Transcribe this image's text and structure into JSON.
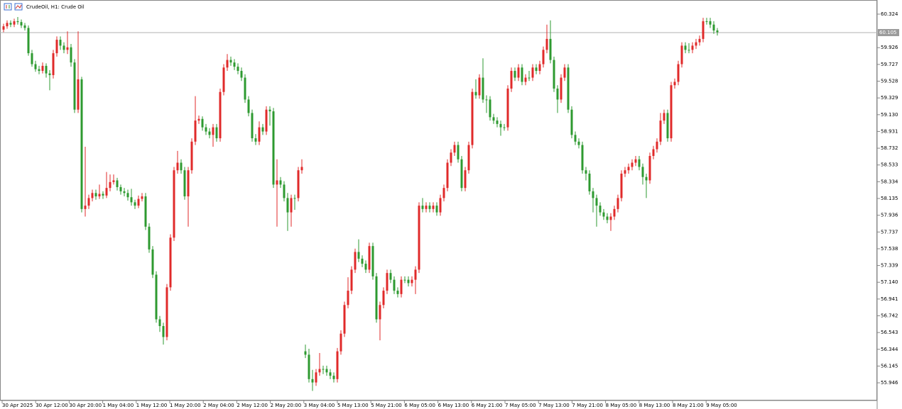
{
  "chart_data": {
    "type": "candlestick",
    "title": "CrudeOil, H1:  Crude Oil",
    "up_color": "#e02a2a",
    "down_color": "#2e9a30",
    "ylim": [
      55.736,
      60.492
    ],
    "yticks": [
      60.324,
      59.926,
      59.727,
      59.528,
      59.329,
      {
        "value": 59.13,
        "label": "59.130"
      },
      58.931,
      58.732,
      58.533,
      58.334,
      58.135,
      57.936,
      57.737,
      57.538,
      57.339,
      {
        "value": 57.14,
        "label": "57.140"
      },
      56.941,
      56.742,
      56.543,
      56.344,
      56.145,
      55.946
    ],
    "current_price": 60.105,
    "time_labels": [
      "30 Apr 2025",
      "30 Apr 12:00",
      "30 Apr 20:00",
      "1 May 04:00",
      "1 May 12:00",
      "1 May 20:00",
      "2 May 04:00",
      "2 May 12:00",
      "2 May 20:00",
      "3 May 04:00",
      "5 May 13:00",
      "5 May 21:00",
      "6 May 05:00",
      "6 May 13:00",
      "6 May 21:00",
      "7 May 05:00",
      "7 May 13:00",
      "7 May 21:00",
      "8 May 05:00",
      "8 May 13:00",
      "8 May 21:00",
      "9 May 05:00"
    ],
    "candles": [
      [
        60.14,
        60.21,
        60.11,
        60.18
      ],
      [
        60.18,
        60.25,
        60.15,
        60.22
      ],
      [
        60.22,
        60.25,
        60.17,
        60.2
      ],
      [
        60.2,
        60.27,
        60.17,
        60.24
      ],
      [
        60.24,
        60.29,
        60.2,
        60.23
      ],
      [
        60.23,
        60.26,
        60.16,
        60.19
      ],
      [
        60.19,
        60.22,
        60.13,
        60.16
      ],
      [
        60.16,
        60.19,
        59.83,
        59.86
      ],
      [
        59.86,
        59.9,
        59.7,
        59.73
      ],
      [
        59.73,
        59.77,
        59.64,
        59.67
      ],
      [
        59.67,
        59.71,
        59.61,
        59.65
      ],
      [
        59.65,
        59.75,
        59.62,
        59.71
      ],
      [
        59.71,
        59.74,
        59.57,
        59.62
      ],
      [
        59.62,
        59.66,
        59.42,
        59.6
      ],
      [
        59.6,
        59.9,
        59.56,
        59.86
      ],
      [
        59.86,
        60.06,
        59.82,
        60.02
      ],
      [
        60.02,
        60.06,
        59.9,
        59.95
      ],
      [
        59.95,
        59.99,
        59.86,
        59.9
      ],
      [
        59.9,
        60.12,
        59.85,
        59.93
      ],
      [
        59.93,
        59.97,
        59.7,
        59.75
      ],
      [
        59.75,
        59.79,
        59.15,
        59.19
      ],
      [
        59.19,
        60.12,
        59.15,
        59.55
      ],
      [
        59.55,
        59.58,
        57.97,
        58.01
      ],
      [
        58.01,
        58.75,
        57.92,
        58.05
      ],
      [
        58.05,
        58.18,
        58.01,
        58.14
      ],
      [
        58.14,
        58.24,
        58.1,
        58.2
      ],
      [
        58.2,
        58.24,
        58.12,
        58.16
      ],
      [
        58.16,
        58.3,
        58.13,
        58.19
      ],
      [
        58.19,
        58.22,
        58.13,
        58.17
      ],
      [
        58.17,
        58.45,
        58.14,
        58.26
      ],
      [
        58.26,
        58.42,
        58.22,
        58.33
      ],
      [
        58.33,
        58.42,
        58.3,
        58.35
      ],
      [
        58.35,
        58.38,
        58.23,
        58.27
      ],
      [
        58.27,
        58.3,
        58.18,
        58.22
      ],
      [
        58.22,
        58.26,
        58.16,
        58.2
      ],
      [
        58.2,
        58.24,
        58.11,
        58.15
      ],
      [
        58.15,
        58.25,
        58.05,
        58.09
      ],
      [
        58.09,
        58.12,
        58.01,
        58.05
      ],
      [
        58.05,
        58.17,
        58.02,
        58.13
      ],
      [
        58.13,
        58.2,
        58.1,
        58.16
      ],
      [
        58.16,
        58.2,
        57.76,
        57.8
      ],
      [
        57.8,
        57.84,
        57.49,
        57.53
      ],
      [
        57.53,
        57.57,
        57.19,
        57.23
      ],
      [
        57.23,
        57.27,
        56.66,
        56.7
      ],
      [
        56.7,
        56.74,
        56.55,
        56.62
      ],
      [
        56.62,
        56.66,
        56.4,
        56.49
      ],
      [
        56.49,
        57.12,
        56.45,
        57.08
      ],
      [
        57.08,
        57.71,
        57.04,
        57.67
      ],
      [
        57.67,
        58.51,
        57.63,
        58.47
      ],
      [
        58.47,
        58.7,
        58.43,
        58.56
      ],
      [
        58.56,
        58.6,
        58.43,
        58.47
      ],
      [
        58.47,
        58.51,
        58.12,
        58.16
      ],
      [
        58.16,
        58.51,
        57.8,
        58.47
      ],
      [
        58.47,
        58.85,
        58.43,
        58.81
      ],
      [
        58.81,
        59.35,
        58.77,
        59.06
      ],
      [
        59.06,
        59.12,
        59.02,
        59.08
      ],
      [
        59.08,
        59.11,
        58.94,
        58.98
      ],
      [
        58.98,
        59.02,
        58.89,
        58.93
      ],
      [
        58.93,
        58.97,
        58.85,
        58.89
      ],
      [
        58.89,
        59.02,
        58.75,
        58.98
      ],
      [
        58.98,
        59.02,
        58.81,
        58.85
      ],
      [
        58.85,
        59.44,
        58.81,
        59.4
      ],
      [
        59.4,
        59.73,
        59.36,
        59.69
      ],
      [
        59.69,
        59.85,
        59.65,
        59.78
      ],
      [
        59.78,
        59.82,
        59.71,
        59.75
      ],
      [
        59.75,
        59.79,
        59.66,
        59.7
      ],
      [
        59.7,
        59.74,
        59.61,
        59.65
      ],
      [
        59.65,
        59.69,
        59.53,
        59.57
      ],
      [
        59.57,
        59.61,
        59.27,
        59.31
      ],
      [
        59.31,
        59.35,
        59.11,
        59.15
      ],
      [
        59.15,
        59.19,
        58.81,
        58.85
      ],
      [
        58.85,
        58.9,
        58.77,
        58.81
      ],
      [
        58.81,
        59.05,
        58.77,
        58.98
      ],
      [
        58.98,
        59.02,
        58.89,
        58.93
      ],
      [
        58.93,
        59.23,
        58.89,
        59.19
      ],
      [
        59.19,
        59.23,
        59.0,
        59.17
      ],
      [
        59.17,
        59.21,
        58.26,
        58.3
      ],
      [
        58.3,
        58.6,
        57.8,
        58.35
      ],
      [
        58.35,
        58.39,
        58.26,
        58.3
      ],
      [
        58.3,
        58.34,
        58.1,
        58.14
      ],
      [
        58.14,
        58.2,
        57.75,
        57.97
      ],
      [
        57.97,
        58.18,
        57.8,
        58.14
      ],
      [
        58.14,
        58.18,
        58.0,
        58.14
      ],
      [
        58.14,
        58.51,
        58.1,
        58.47
      ],
      [
        58.47,
        58.6,
        58.43,
        58.51
      ],
      [
        56.32,
        56.4,
        56.24,
        56.28
      ],
      [
        56.28,
        56.35,
        55.95,
        55.99
      ],
      [
        55.99,
        56.1,
        55.85,
        55.95
      ],
      [
        55.95,
        56.11,
        55.91,
        56.07
      ],
      [
        56.07,
        56.3,
        56.03,
        56.11
      ],
      [
        56.11,
        56.15,
        56.05,
        56.11
      ],
      [
        56.11,
        56.15,
        56.03,
        56.07
      ],
      [
        56.07,
        56.11,
        55.99,
        56.03
      ],
      [
        56.03,
        56.07,
        55.95,
        55.99
      ],
      [
        55.99,
        56.36,
        55.95,
        56.32
      ],
      [
        56.32,
        56.57,
        56.28,
        56.53
      ],
      [
        56.53,
        56.91,
        56.49,
        56.87
      ],
      [
        56.87,
        57.2,
        56.83,
        57.04
      ],
      [
        57.04,
        57.33,
        57.0,
        57.29
      ],
      [
        57.29,
        57.54,
        57.25,
        57.5
      ],
      [
        57.5,
        57.65,
        57.38,
        57.42
      ],
      [
        57.42,
        57.46,
        57.32,
        57.36
      ],
      [
        57.36,
        57.4,
        57.25,
        57.29
      ],
      [
        57.29,
        57.61,
        57.25,
        57.57
      ],
      [
        57.57,
        57.61,
        57.17,
        57.21
      ],
      [
        57.21,
        57.25,
        56.66,
        56.7
      ],
      [
        56.7,
        56.91,
        56.45,
        56.87
      ],
      [
        56.87,
        57.08,
        56.83,
        57.04
      ],
      [
        57.04,
        57.29,
        57.0,
        57.25
      ],
      [
        57.25,
        57.29,
        57.13,
        57.17
      ],
      [
        57.17,
        57.21,
        57.0,
        57.04
      ],
      [
        57.04,
        57.08,
        56.96,
        57.0
      ],
      [
        57.0,
        57.21,
        56.96,
        57.17
      ],
      [
        57.17,
        57.21,
        57.13,
        57.17
      ],
      [
        57.17,
        57.21,
        57.09,
        57.13
      ],
      [
        57.13,
        57.21,
        57.09,
        57.17
      ],
      [
        57.17,
        57.33,
        57.0,
        57.29
      ],
      [
        57.29,
        58.09,
        57.25,
        58.05
      ],
      [
        58.05,
        58.14,
        57.97,
        58.01
      ],
      [
        58.01,
        58.09,
        57.97,
        58.05
      ],
      [
        58.05,
        58.09,
        57.97,
        58.01
      ],
      [
        58.01,
        58.09,
        57.97,
        58.05
      ],
      [
        58.05,
        58.09,
        57.93,
        57.97
      ],
      [
        57.97,
        58.18,
        57.93,
        58.14
      ],
      [
        58.14,
        58.3,
        58.1,
        58.26
      ],
      [
        58.26,
        58.6,
        58.22,
        58.56
      ],
      [
        58.56,
        58.72,
        58.52,
        58.68
      ],
      [
        58.68,
        58.81,
        58.64,
        58.77
      ],
      [
        58.77,
        58.81,
        58.56,
        58.6
      ],
      [
        58.6,
        58.64,
        58.22,
        58.26
      ],
      [
        58.26,
        58.51,
        58.22,
        58.47
      ],
      [
        58.47,
        58.81,
        58.43,
        58.77
      ],
      [
        58.77,
        59.44,
        58.73,
        59.4
      ],
      [
        59.4,
        59.55,
        59.32,
        59.36
      ],
      [
        59.36,
        59.61,
        59.32,
        59.57
      ],
      [
        59.57,
        59.8,
        59.27,
        59.31
      ],
      [
        59.31,
        59.36,
        59.15,
        59.31
      ],
      [
        59.31,
        59.35,
        59.06,
        59.1
      ],
      [
        59.1,
        59.14,
        59.02,
        59.06
      ],
      [
        59.06,
        59.1,
        58.98,
        59.02
      ],
      [
        59.02,
        59.06,
        58.88,
        58.98
      ],
      [
        58.98,
        59.02,
        58.94,
        58.98
      ],
      [
        58.98,
        59.48,
        58.94,
        59.44
      ],
      [
        59.44,
        59.69,
        59.4,
        59.65
      ],
      [
        59.65,
        59.69,
        59.53,
        59.57
      ],
      [
        59.57,
        59.73,
        59.53,
        59.69
      ],
      [
        59.69,
        59.73,
        59.48,
        59.52
      ],
      [
        59.52,
        59.61,
        59.48,
        59.57
      ],
      [
        59.57,
        59.65,
        59.53,
        59.57
      ],
      [
        59.57,
        59.73,
        59.53,
        59.69
      ],
      [
        59.69,
        59.73,
        59.61,
        59.65
      ],
      [
        59.65,
        59.77,
        59.61,
        59.73
      ],
      [
        59.73,
        59.94,
        59.69,
        59.9
      ],
      [
        59.9,
        60.2,
        59.86,
        60.03
      ],
      [
        60.03,
        60.25,
        59.74,
        59.78
      ],
      [
        59.78,
        59.82,
        59.4,
        59.44
      ],
      [
        59.44,
        59.48,
        59.15,
        59.31
      ],
      [
        59.31,
        59.61,
        59.27,
        59.57
      ],
      [
        59.57,
        59.73,
        59.53,
        59.69
      ],
      [
        59.69,
        59.73,
        59.15,
        59.19
      ],
      [
        59.19,
        59.23,
        58.85,
        58.89
      ],
      [
        58.89,
        58.93,
        58.77,
        58.81
      ],
      [
        58.81,
        58.85,
        58.73,
        58.77
      ],
      [
        58.77,
        58.81,
        58.43,
        58.47
      ],
      [
        58.47,
        58.51,
        58.35,
        58.43
      ],
      [
        58.43,
        58.47,
        58.18,
        58.22
      ],
      [
        58.22,
        58.26,
        57.97,
        58.14
      ],
      [
        58.14,
        58.18,
        57.8,
        58.05
      ],
      [
        58.05,
        58.09,
        57.93,
        57.97
      ],
      [
        57.97,
        58.01,
        57.88,
        57.92
      ],
      [
        57.92,
        57.96,
        57.84,
        57.88
      ],
      [
        57.88,
        57.96,
        57.75,
        57.92
      ],
      [
        57.92,
        58.05,
        57.88,
        58.01
      ],
      [
        58.01,
        58.18,
        57.97,
        58.14
      ],
      [
        58.14,
        58.47,
        58.1,
        58.43
      ],
      [
        58.43,
        58.51,
        58.39,
        58.47
      ],
      [
        58.47,
        58.55,
        58.43,
        58.51
      ],
      [
        58.51,
        58.6,
        58.47,
        58.56
      ],
      [
        58.56,
        58.64,
        58.52,
        58.6
      ],
      [
        58.6,
        58.64,
        58.47,
        58.51
      ],
      [
        58.51,
        58.55,
        58.3,
        58.39
      ],
      [
        58.39,
        58.43,
        58.14,
        58.35
      ],
      [
        58.35,
        58.68,
        58.31,
        58.64
      ],
      [
        58.64,
        58.76,
        58.6,
        58.72
      ],
      [
        58.72,
        58.85,
        58.68,
        58.81
      ],
      [
        58.81,
        59.15,
        58.77,
        59.06
      ],
      [
        59.06,
        59.19,
        59.02,
        59.15
      ],
      [
        59.15,
        59.19,
        58.81,
        58.85
      ],
      [
        58.85,
        59.52,
        58.81,
        59.48
      ],
      [
        59.48,
        59.56,
        59.44,
        59.52
      ],
      [
        59.52,
        59.77,
        59.48,
        59.73
      ],
      [
        59.73,
        59.99,
        59.69,
        59.95
      ],
      [
        59.95,
        59.99,
        59.86,
        59.9
      ],
      [
        59.9,
        59.98,
        59.86,
        59.9
      ],
      [
        59.9,
        59.99,
        59.86,
        59.95
      ],
      [
        59.95,
        60.03,
        59.91,
        59.99
      ],
      [
        59.99,
        60.07,
        59.95,
        60.03
      ],
      [
        60.03,
        60.28,
        59.99,
        60.24
      ],
      [
        60.24,
        60.28,
        60.2,
        60.24
      ],
      [
        60.24,
        60.28,
        60.16,
        60.2
      ],
      [
        60.2,
        60.24,
        60.09,
        60.13
      ],
      [
        60.13,
        60.16,
        60.07,
        60.11
      ]
    ]
  }
}
